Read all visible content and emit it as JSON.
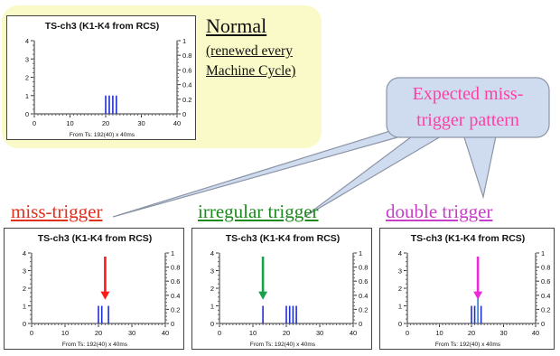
{
  "normal": {
    "title": "Normal",
    "subtitle_lines": [
      "(renewed every",
      "Machine Cycle)"
    ]
  },
  "callout": {
    "lines": [
      "Expected miss-",
      "trigger pattern"
    ]
  },
  "categories": {
    "miss": "miss-trigger",
    "irregular": "irregular trigger",
    "double": "double trigger"
  },
  "colors": {
    "normal_bg": "#fafac8",
    "callout_fill": "#cfdcf0",
    "callout_text": "#ff3fa4",
    "bar": "#1f2fd0",
    "bar_highlight": "#2f7fcf",
    "miss_label": "#e0301e",
    "irregular_label": "#1c8a1c",
    "double_label": "#c83ec8",
    "arrow_red": "#ff1a1a",
    "arrow_green": "#1aa04a",
    "arrow_magenta": "#ee2ad8"
  },
  "chart_data": [
    {
      "type": "bar",
      "title": "TS-ch3 (K1-K4 from RCS)",
      "xlabel": "From Ts: 192(40) x 40ms",
      "xlim": [
        0,
        40
      ],
      "ylim": [
        0,
        4
      ],
      "y2lim": [
        0,
        1
      ],
      "xticks": [
        "0",
        "10",
        "20",
        "30",
        "40"
      ],
      "yticks": [
        "0",
        "1",
        "2",
        "3",
        "4"
      ],
      "y2ticks": [
        "0",
        "0.2",
        "0.4",
        "0.6",
        "0.8",
        "1"
      ],
      "x": [
        20,
        21,
        22,
        23
      ],
      "values": [
        1,
        1,
        1,
        1
      ]
    },
    {
      "type": "bar",
      "title": "TS-ch3 (K1-K4 from RCS)",
      "xlabel": "From Ts: 192(40) x 40ms",
      "xlim": [
        0,
        40
      ],
      "ylim": [
        0,
        4
      ],
      "y2lim": [
        0,
        1
      ],
      "xticks": [
        "0",
        "10",
        "20",
        "30",
        "40"
      ],
      "yticks": [
        "0",
        "1",
        "2",
        "3",
        "4"
      ],
      "y2ticks": [
        "0",
        "0.2",
        "0.4",
        "0.6",
        "0.8",
        "1"
      ],
      "x": [
        20,
        21,
        23
      ],
      "values": [
        1,
        1,
        1
      ],
      "arrow_x": 22
    },
    {
      "type": "bar",
      "title": "TS-ch3 (K1-K4 from RCS)",
      "xlabel": "From Ts: 192(40) x 40ms",
      "xlim": [
        0,
        40
      ],
      "ylim": [
        0,
        4
      ],
      "y2lim": [
        0,
        1
      ],
      "xticks": [
        "0",
        "10",
        "20",
        "30",
        "40"
      ],
      "yticks": [
        "0",
        "1",
        "2",
        "3",
        "4"
      ],
      "y2ticks": [
        "0",
        "0.2",
        "0.4",
        "0.6",
        "0.8",
        "1"
      ],
      "x": [
        13,
        20,
        21,
        22,
        23
      ],
      "values": [
        1,
        1,
        1,
        1,
        1
      ],
      "arrow_x": 13
    },
    {
      "type": "bar",
      "title": "TS-ch3 (K1-K4 from RCS)",
      "xlabel": "From Ts: 192(40) x 40ms",
      "xlim": [
        0,
        40
      ],
      "ylim": [
        0,
        4
      ],
      "y2lim": [
        0,
        1
      ],
      "xticks": [
        "0",
        "10",
        "20",
        "30",
        "40"
      ],
      "yticks": [
        "0",
        "1",
        "2",
        "3",
        "4"
      ],
      "y2ticks": [
        "0",
        "0.2",
        "0.4",
        "0.6",
        "0.8",
        "1"
      ],
      "x": [
        20,
        21,
        22,
        23
      ],
      "values": [
        1,
        1,
        2,
        1
      ],
      "arrow_x": 22
    }
  ]
}
